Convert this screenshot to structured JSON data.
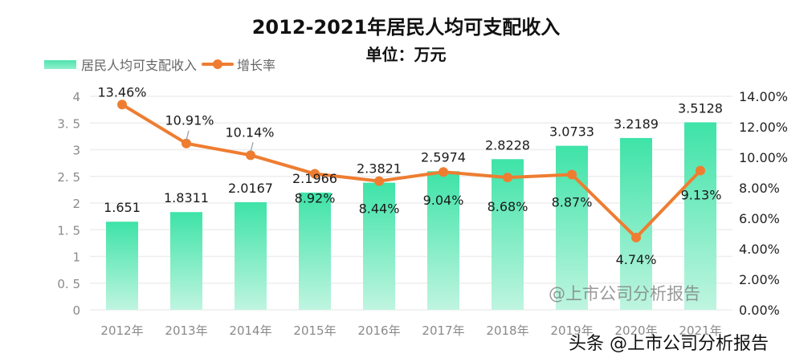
{
  "header": {
    "title": "2012-2021年居民人均可支配收入",
    "subtitle": "单位：万元"
  },
  "legend": {
    "items": [
      {
        "label": "居民人均可支配收入",
        "type": "bar",
        "color": "#4fe3b0"
      },
      {
        "label": "增长率",
        "type": "line",
        "color": "#ee7d31"
      }
    ]
  },
  "watermarks": {
    "chart": "@上市公司分析报告",
    "platform": "头条 @上市公司分析报告"
  },
  "colors": {
    "bar_top": "#3ee3a8",
    "bar_bottom": "#b8f3dd",
    "line": "#ee7d31",
    "grid": "#eeeeee"
  },
  "chart_data": {
    "type": "bar+line",
    "title": "2012-2021年居民人均可支配收入",
    "subtitle": "单位：万元",
    "categories": [
      "2012年",
      "2013年",
      "2014年",
      "2015年",
      "2016年",
      "2017年",
      "2018年",
      "2019年",
      "2020年",
      "2021年"
    ],
    "series": [
      {
        "name": "居民人均可支配收入",
        "type": "bar",
        "axis": "left",
        "values": [
          1.651,
          1.8311,
          2.0167,
          2.1966,
          2.3821,
          2.5974,
          2.8228,
          3.0733,
          3.2189,
          3.5128
        ],
        "labels": [
          "1.651",
          "1.8311",
          "2.0167",
          "2.1966",
          "2.3821",
          "2.5974",
          "2.8228",
          "3.0733",
          "3.2189",
          "3.5128"
        ]
      },
      {
        "name": "增长率",
        "type": "line",
        "axis": "right",
        "values": [
          13.46,
          10.91,
          10.14,
          8.92,
          8.44,
          9.04,
          8.68,
          8.87,
          4.74,
          9.13
        ],
        "labels": [
          "13.46%",
          "10.91%",
          "10.14%",
          "8.92%",
          "8.44%",
          "9.04%",
          "8.68%",
          "8.87%",
          "4.74%",
          "9.13%"
        ]
      }
    ],
    "left_axis": {
      "ylim": [
        0,
        4
      ],
      "ticks": [
        "0",
        "0. 5",
        "1",
        "1. 5",
        "2",
        "2. 5",
        "3",
        "3. 5",
        "4"
      ]
    },
    "right_axis": {
      "ylim": [
        0,
        14
      ],
      "ticks": [
        "0.00%",
        "2.00%",
        "4.00%",
        "6.00%",
        "8.00%",
        "10.00%",
        "12.00%",
        "14.00%"
      ]
    },
    "xlabel": "",
    "ylabel": "",
    "grid": true,
    "legend_position": "top-left"
  }
}
